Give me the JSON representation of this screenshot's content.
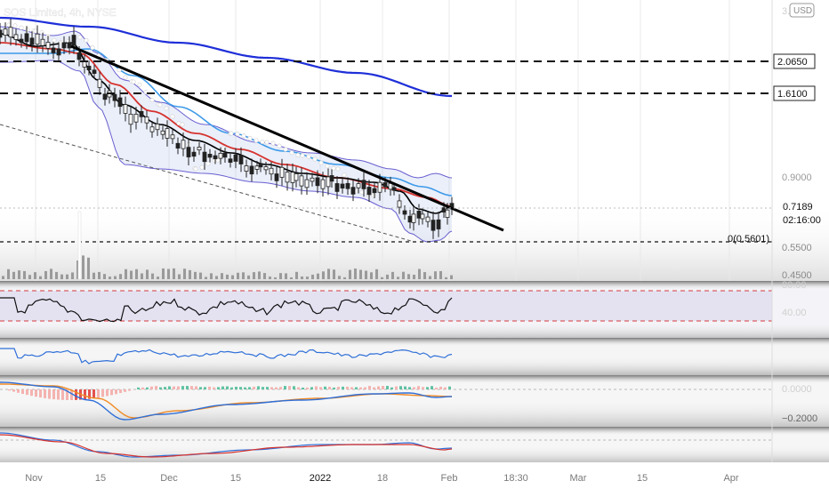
{
  "header": {
    "symbol_title": "SOS Limited, 4h, NYSE",
    "currency_badge": "USD"
  },
  "price_axis": {
    "top_label": "3.0000",
    "ticks": [
      "0.9000",
      "0.5500",
      "0.4500"
    ],
    "tags": [
      {
        "label": "2.0650",
        "value": 2.065
      },
      {
        "label": "1.6100",
        "value": 1.61
      }
    ],
    "last_price": {
      "label": "0.7189",
      "countdown": "02:16:00",
      "value": 0.7189
    },
    "fib_label": "0(0.5601)",
    "fib_value": 0.5601
  },
  "rsi_axis": {
    "upper": "80.00",
    "lower": "40.00"
  },
  "macd_axis": {
    "upper": "0.0000",
    "lower": "−0.2000"
  },
  "time_axis": {
    "labels": [
      "Nov",
      "15",
      "Dec",
      "15",
      "2022",
      "18",
      "Feb",
      "18:30",
      "Mar",
      "15",
      "Apr"
    ]
  },
  "colors": {
    "ma_blue": "#1e2fd8",
    "ma_light_blue": "#3d9ae8",
    "ma_red": "#d6322e",
    "bollinger": "#6a5fd0",
    "price_line": "#000000",
    "macd_orange": "#f08a24",
    "rsi_band": "#d63a3a"
  },
  "chart_data": {
    "type": "candlestick",
    "title": "SOS Limited, 4h, NYSE",
    "ylim": [
      0.45,
      3.0
    ],
    "close_series": [
      {
        "x": "Nov",
        "y": 2.3
      },
      {
        "x": "Nov 10",
        "y": 2.2
      },
      {
        "x": "Nov 15",
        "y": 1.5
      },
      {
        "x": "Dec",
        "y": 1.15
      },
      {
        "x": "Dec 15",
        "y": 1.0
      },
      {
        "x": "2022",
        "y": 0.88
      },
      {
        "x": "Jan 18",
        "y": 0.82
      },
      {
        "x": "Jan 25",
        "y": 0.59
      },
      {
        "x": "Feb",
        "y": 0.7189
      }
    ],
    "horizontal_levels": [
      2.065,
      1.61,
      0.5601
    ],
    "last_value": 0.7189
  }
}
